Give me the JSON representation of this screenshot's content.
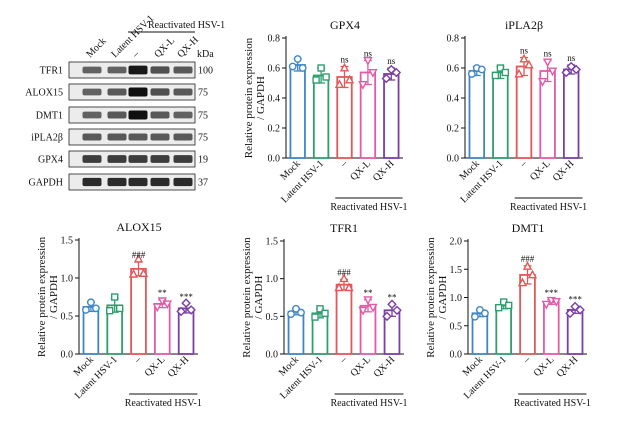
{
  "blot": {
    "lanes": [
      "Mock",
      "Latent HSV-1",
      "–",
      "QX-L",
      "QX-H"
    ],
    "group_label": "Reactivated HSV-1",
    "kda_label": "kDa",
    "rows": [
      {
        "name": "TFR1",
        "kda": "100",
        "intensity": [
          0.55,
          0.55,
          0.95,
          0.65,
          0.6
        ]
      },
      {
        "name": "ALOX15",
        "kda": "75",
        "intensity": [
          0.55,
          0.6,
          1.0,
          0.65,
          0.6
        ]
      },
      {
        "name": "DMT1",
        "kda": "75",
        "intensity": [
          0.55,
          0.6,
          1.0,
          0.6,
          0.55
        ]
      },
      {
        "name": "iPLA2β",
        "kda": "75",
        "intensity": [
          0.6,
          0.6,
          0.6,
          0.6,
          0.6
        ]
      },
      {
        "name": "GPX4",
        "kda": "19",
        "intensity": [
          0.75,
          0.75,
          0.75,
          0.75,
          0.75
        ]
      },
      {
        "name": "GAPDH",
        "kda": "37",
        "intensity": [
          0.85,
          0.85,
          0.85,
          0.85,
          0.85
        ]
      }
    ]
  },
  "chart_data": [
    {
      "type": "bar",
      "title": "GPX4",
      "ylabel": [
        "Relative protein expression",
        "/ GAPDH"
      ],
      "ylim": [
        0,
        0.8
      ],
      "yticks": [
        "0.0",
        "0.2",
        "0.4",
        "0.6",
        "0.8"
      ],
      "ytick_values": [
        0,
        0.2,
        0.4,
        0.6,
        0.8
      ],
      "categories": [
        "Mock",
        "Latent HSV-1",
        "–",
        "QX-L",
        "QX-H"
      ],
      "group_label": "Reactivated HSV-1",
      "values": [
        0.62,
        0.55,
        0.54,
        0.57,
        0.56
      ],
      "errors": [
        0.04,
        0.05,
        0.07,
        0.08,
        0.04
      ],
      "points": [
        [
          0.66,
          0.61,
          0.6
        ],
        [
          0.6,
          0.52,
          0.54
        ],
        [
          0.6,
          0.49,
          0.52
        ],
        [
          0.65,
          0.49,
          0.57
        ],
        [
          0.59,
          0.53,
          0.57
        ]
      ],
      "annotations": [
        "",
        "",
        "ns",
        "ns",
        "ns"
      ]
    },
    {
      "type": "bar",
      "title": "iPLA2β",
      "ylabel": [],
      "ylim": [
        0,
        0.8
      ],
      "yticks": [
        "0.0",
        "0.2",
        "0.4",
        "0.6",
        "0.8"
      ],
      "ytick_values": [
        0,
        0.2,
        0.4,
        0.6,
        0.8
      ],
      "categories": [
        "Mock",
        "Latent HSV-1",
        "–",
        "QX-L",
        "QX-H"
      ],
      "group_label": "Reactivated HSV-1",
      "values": [
        0.58,
        0.57,
        0.61,
        0.58,
        0.59
      ],
      "errors": [
        0.03,
        0.04,
        0.06,
        0.07,
        0.03
      ],
      "points": [
        [
          0.6,
          0.56,
          0.59
        ],
        [
          0.6,
          0.55,
          0.57
        ],
        [
          0.66,
          0.56,
          0.62
        ],
        [
          0.64,
          0.51,
          0.58
        ],
        [
          0.61,
          0.57,
          0.59
        ]
      ],
      "annotations": [
        "",
        "",
        "ns",
        "ns",
        "ns"
      ]
    },
    {
      "type": "bar",
      "title": "ALOX15",
      "ylabel": [
        "Relative protein expression",
        "/ GAPDH"
      ],
      "ylim": [
        0,
        1.5
      ],
      "yticks": [
        "0.0",
        "0.5",
        "1.0",
        "1.5"
      ],
      "ytick_values": [
        0,
        0.5,
        1.0,
        1.5
      ],
      "categories": [
        "Mock",
        "Latent HSV-1",
        "–",
        "QX-L",
        "QX-H"
      ],
      "group_label": "Reactivated HSV-1",
      "values": [
        0.62,
        0.64,
        1.12,
        0.66,
        0.6
      ],
      "errors": [
        0.06,
        0.09,
        0.09,
        0.05,
        0.06
      ],
      "points": [
        [
          0.68,
          0.58,
          0.6
        ],
        [
          0.75,
          0.57,
          0.6
        ],
        [
          1.25,
          1.05,
          1.06
        ],
        [
          0.7,
          0.62,
          0.66
        ],
        [
          0.67,
          0.56,
          0.58
        ]
      ],
      "annotations": [
        "",
        "",
        "###",
        "**",
        "***"
      ]
    },
    {
      "type": "bar",
      "title": "TFR1",
      "ylabel": [
        "Relative protein expression",
        "/ GAPDH"
      ],
      "ylim": [
        0,
        1.5
      ],
      "yticks": [
        "0.0",
        "0.5",
        "1.0",
        "1.5"
      ],
      "ytick_values": [
        0,
        0.5,
        1.0,
        1.5
      ],
      "categories": [
        "Mock",
        "Latent HSV-1",
        "–",
        "QX-L",
        "QX-H"
      ],
      "group_label": "Reactivated HSV-1",
      "values": [
        0.56,
        0.54,
        0.92,
        0.64,
        0.58
      ],
      "errors": [
        0.04,
        0.06,
        0.07,
        0.08,
        0.08
      ],
      "points": [
        [
          0.6,
          0.53,
          0.55
        ],
        [
          0.6,
          0.49,
          0.54
        ],
        [
          1.0,
          0.88,
          0.88
        ],
        [
          0.72,
          0.58,
          0.62
        ],
        [
          0.66,
          0.5,
          0.58
        ]
      ],
      "annotations": [
        "",
        "",
        "###",
        "**",
        "**"
      ]
    },
    {
      "type": "bar",
      "title": "DMT1",
      "ylabel": [
        "Relative protein expression",
        "/ GAPDH"
      ],
      "ylim": [
        0,
        2.0
      ],
      "yticks": [
        "0.0",
        "0.5",
        "1.0",
        "1.5",
        "2.0"
      ],
      "ytick_values": [
        0,
        0.5,
        1.0,
        1.5,
        2.0
      ],
      "categories": [
        "Mock",
        "Latent HSV-1",
        "–",
        "QX-L",
        "QX-H"
      ],
      "group_label": "Reactivated HSV-1",
      "values": [
        0.72,
        0.86,
        1.4,
        0.92,
        0.78
      ],
      "errors": [
        0.06,
        0.06,
        0.16,
        0.04,
        0.06
      ],
      "points": [
        [
          0.78,
          0.66,
          0.72
        ],
        [
          0.92,
          0.82,
          0.86
        ],
        [
          1.55,
          1.26,
          1.4
        ],
        [
          0.95,
          0.88,
          0.93
        ],
        [
          0.84,
          0.72,
          0.78
        ]
      ],
      "annotations": [
        "",
        "",
        "###",
        "***",
        "***"
      ]
    }
  ],
  "colors": [
    "#3f86c6",
    "#2f9e6f",
    "#e25757",
    "#e35aa5",
    "#7b3fa3"
  ]
}
